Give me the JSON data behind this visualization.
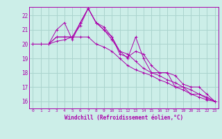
{
  "xlabel": "Windchill (Refroidissement éolien,°C)",
  "bg_color": "#cceee8",
  "grid_color": "#aad4ce",
  "line_color": "#aa00aa",
  "x_ticks": [
    0,
    1,
    2,
    3,
    4,
    5,
    6,
    7,
    8,
    9,
    10,
    11,
    12,
    13,
    14,
    15,
    16,
    17,
    18,
    19,
    20,
    21,
    22,
    23
  ],
  "ylim": [
    15.5,
    22.6
  ],
  "yticks": [
    16,
    17,
    18,
    19,
    20,
    21,
    22
  ],
  "series": [
    [
      20.0,
      20.0,
      20.0,
      21.0,
      21.5,
      20.3,
      21.5,
      22.5,
      21.5,
      21.0,
      20.5,
      19.5,
      19.0,
      20.5,
      19.0,
      18.0,
      18.0,
      18.0,
      17.0,
      17.0,
      16.5,
      16.5,
      16.2,
      16.0
    ],
    [
      20.0,
      20.0,
      20.0,
      20.2,
      20.3,
      20.5,
      20.5,
      20.5,
      20.0,
      19.8,
      19.5,
      19.0,
      18.5,
      18.2,
      18.0,
      17.8,
      17.5,
      17.3,
      17.0,
      16.8,
      16.5,
      16.3,
      16.1,
      16.0
    ],
    [
      20.0,
      20.0,
      20.0,
      20.5,
      20.5,
      20.5,
      21.3,
      22.5,
      21.5,
      21.0,
      20.3,
      19.5,
      19.3,
      18.8,
      18.3,
      18.0,
      17.8,
      17.5,
      17.3,
      17.0,
      16.8,
      16.5,
      16.3,
      16.0
    ],
    [
      20.0,
      20.0,
      20.0,
      20.5,
      20.5,
      20.5,
      21.5,
      22.5,
      21.5,
      21.2,
      20.5,
      19.3,
      19.1,
      19.5,
      19.3,
      18.5,
      18.0,
      18.0,
      17.8,
      17.2,
      17.0,
      17.0,
      16.5,
      16.0
    ]
  ]
}
